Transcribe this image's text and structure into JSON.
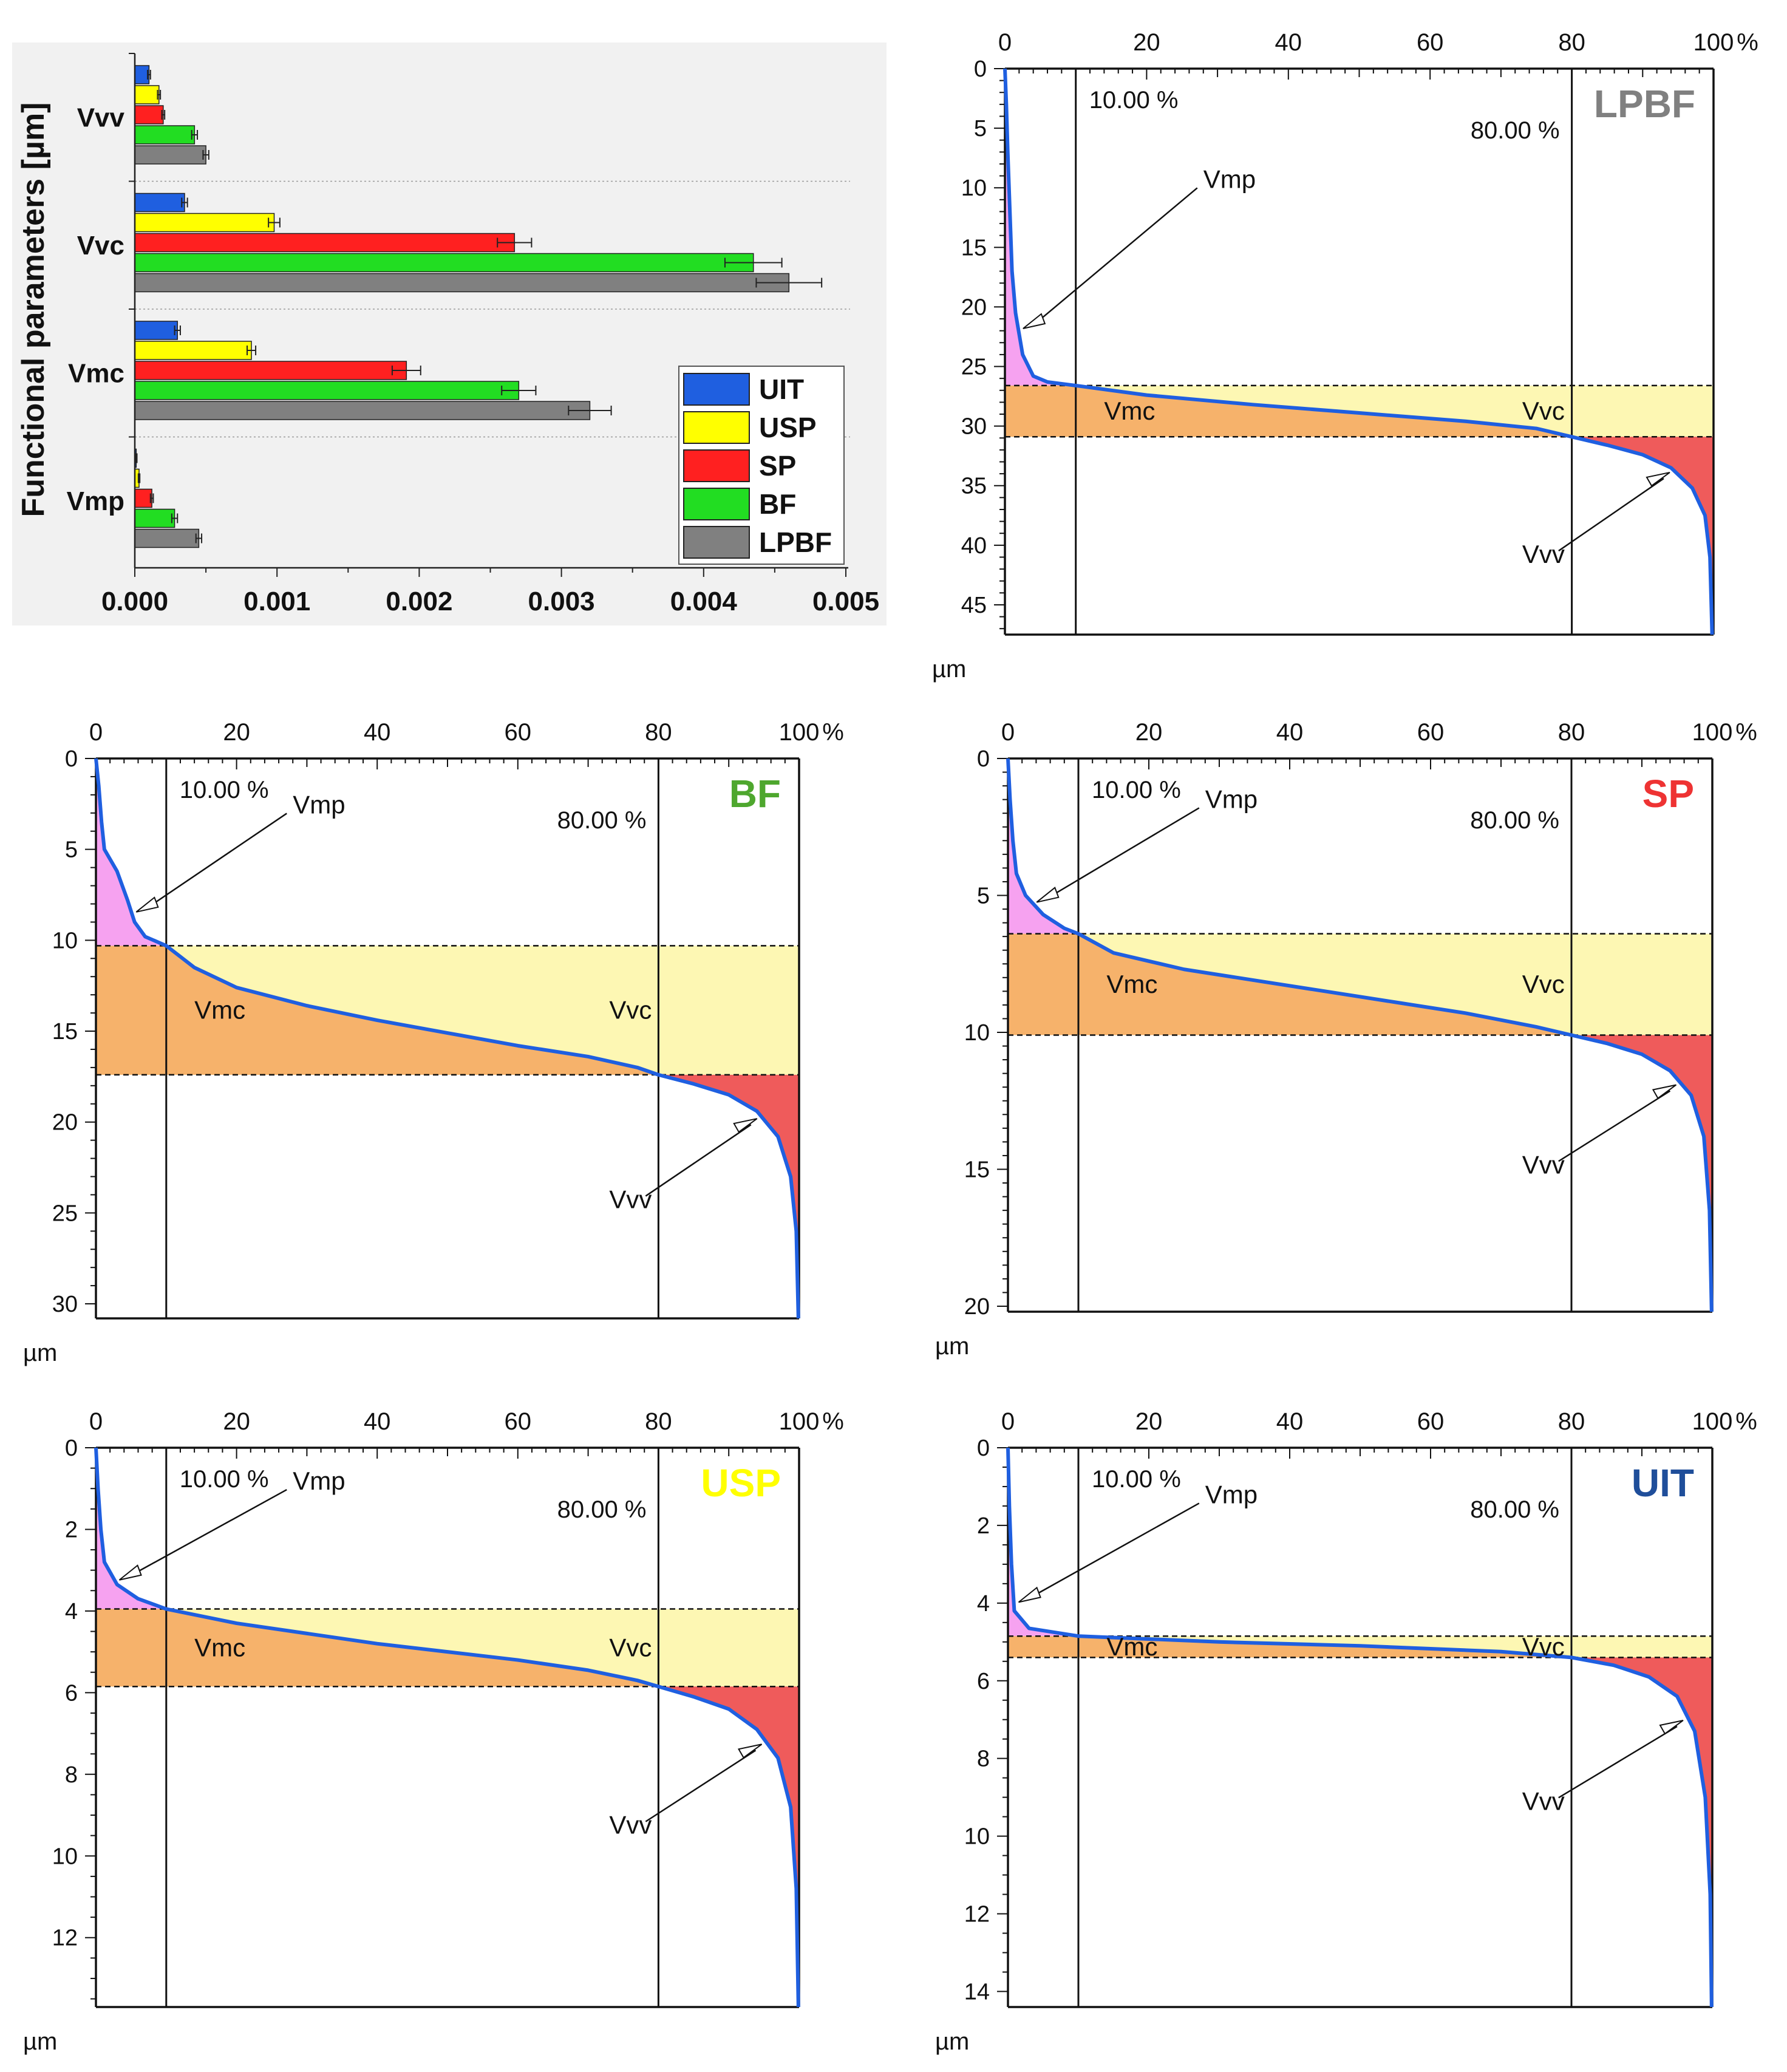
{
  "chart_data": [
    {
      "id": "functional-params",
      "type": "bar",
      "orientation": "horizontal",
      "ylabel": "Functional parameters [µm]",
      "xlabel": "",
      "xlim": [
        0,
        0.005
      ],
      "xticks": [
        "0.000",
        "0.001",
        "0.002",
        "0.003",
        "0.004",
        "0.005"
      ],
      "xtick_values": [
        0,
        0.001,
        0.002,
        0.003,
        0.004,
        0.005
      ],
      "categories": [
        "Vvv",
        "Vvc",
        "Vmc",
        "Vmp"
      ],
      "series": [
        {
          "name": "UIT",
          "color": "#1f5fe0",
          "values": [
            0.0001,
            0.00035,
            0.0003,
            1e-05
          ],
          "errors": [
            1e-05,
            2e-05,
            2e-05,
            5e-06
          ]
        },
        {
          "name": "USP",
          "color": "#ffff00",
          "values": [
            0.00017,
            0.00098,
            0.00082,
            3e-05
          ],
          "errors": [
            1e-05,
            4e-05,
            3e-05,
            5e-06
          ]
        },
        {
          "name": "SP",
          "color": "#ff2020",
          "values": [
            0.0002,
            0.00267,
            0.00191,
            0.00012
          ],
          "errors": [
            1e-05,
            0.00012,
            0.0001,
            1e-05
          ]
        },
        {
          "name": "BF",
          "color": "#22dd22",
          "values": [
            0.00042,
            0.00435,
            0.0027,
            0.00028
          ],
          "errors": [
            2e-05,
            0.0002,
            0.00012,
            2e-05
          ]
        },
        {
          "name": "LPBF",
          "color": "#808080",
          "values": [
            0.0005,
            0.0046,
            0.0032,
            0.00045
          ],
          "errors": [
            2e-05,
            0.00023,
            0.00015,
            2e-05
          ]
        }
      ],
      "legend": [
        "UIT",
        "USP",
        "SP",
        "BF",
        "LPBF"
      ]
    },
    {
      "id": "LPBF",
      "type": "area",
      "title": "LPBF",
      "title_color": "#808080",
      "xunit": "%",
      "yunit": "µm",
      "xticks": [
        0,
        20,
        40,
        60,
        80,
        100
      ],
      "yticks": [
        0,
        5,
        10,
        15,
        20,
        25,
        30,
        35,
        40,
        45
      ],
      "ylim": [
        0,
        47.5
      ],
      "y_minor": 1,
      "thresholds": {
        "mr1": 10,
        "mr2": 80,
        "mr1_label": "10.00 %",
        "mr2_label": "80.00 %"
      },
      "depth_mr1": 26.6,
      "depth_mr2": 30.9,
      "curve": [
        [
          0,
          0
        ],
        [
          0.2,
          3
        ],
        [
          0.4,
          7
        ],
        [
          0.7,
          12
        ],
        [
          1,
          17
        ],
        [
          1.5,
          20.5
        ],
        [
          2.5,
          24
        ],
        [
          4,
          25.8
        ],
        [
          6,
          26.3
        ],
        [
          10,
          26.6
        ],
        [
          20,
          27.4
        ],
        [
          35,
          28.2
        ],
        [
          50,
          28.9
        ],
        [
          65,
          29.6
        ],
        [
          75,
          30.2
        ],
        [
          80,
          30.9
        ],
        [
          85,
          31.6
        ],
        [
          90,
          32.4
        ],
        [
          94,
          33.5
        ],
        [
          97,
          35.2
        ],
        [
          98.8,
          37.5
        ],
        [
          99.5,
          41
        ],
        [
          99.8,
          47.5
        ]
      ],
      "labels": {
        "vmp": "Vmp",
        "vmc": "Vmc",
        "vvc": "Vvc",
        "vvv": "Vvv"
      }
    },
    {
      "id": "BF",
      "type": "area",
      "title": "BF",
      "title_color": "#4ea72e",
      "xunit": "%",
      "yunit": "µm",
      "xticks": [
        0,
        20,
        40,
        60,
        80,
        100
      ],
      "yticks": [
        0,
        5,
        10,
        15,
        20,
        25,
        30
      ],
      "ylim": [
        0,
        30.8
      ],
      "y_minor": 1,
      "thresholds": {
        "mr1": 10,
        "mr2": 80,
        "mr1_label": "10.00 %",
        "mr2_label": "80.00 %"
      },
      "depth_mr1": 10.3,
      "depth_mr2": 17.4,
      "curve": [
        [
          0,
          0
        ],
        [
          0.4,
          1.5
        ],
        [
          0.8,
          3.5
        ],
        [
          1.2,
          5
        ],
        [
          3,
          6.2
        ],
        [
          4.5,
          7.8
        ],
        [
          5.5,
          9
        ],
        [
          7,
          9.8
        ],
        [
          10,
          10.3
        ],
        [
          14,
          11.5
        ],
        [
          20,
          12.6
        ],
        [
          30,
          13.6
        ],
        [
          40,
          14.4
        ],
        [
          50,
          15.1
        ],
        [
          60,
          15.8
        ],
        [
          70,
          16.4
        ],
        [
          77,
          17
        ],
        [
          80,
          17.4
        ],
        [
          85,
          17.9
        ],
        [
          90,
          18.5
        ],
        [
          94,
          19.4
        ],
        [
          97,
          20.8
        ],
        [
          98.8,
          23
        ],
        [
          99.6,
          26
        ],
        [
          99.9,
          30.8
        ]
      ],
      "labels": {
        "vmp": "Vmp",
        "vmc": "Vmc",
        "vvc": "Vvc",
        "vvv": "Vvv"
      }
    },
    {
      "id": "SP",
      "type": "area",
      "title": "SP",
      "title_color": "#ee3333",
      "xunit": "%",
      "yunit": "µm",
      "xticks": [
        0,
        20,
        40,
        60,
        80,
        100
      ],
      "yticks": [
        0,
        5,
        10,
        15,
        20
      ],
      "ylim": [
        0,
        20.2
      ],
      "y_minor": 0.5,
      "thresholds": {
        "mr1": 10,
        "mr2": 80,
        "mr1_label": "10.00 %",
        "mr2_label": "80.00 %"
      },
      "depth_mr1": 6.4,
      "depth_mr2": 10.1,
      "curve": [
        [
          0,
          0
        ],
        [
          0.3,
          1.5
        ],
        [
          0.7,
          3
        ],
        [
          1.2,
          4.2
        ],
        [
          2.5,
          5
        ],
        [
          5,
          5.7
        ],
        [
          8,
          6.2
        ],
        [
          10,
          6.4
        ],
        [
          15,
          7.1
        ],
        [
          25,
          7.7
        ],
        [
          35,
          8.1
        ],
        [
          45,
          8.5
        ],
        [
          55,
          8.9
        ],
        [
          65,
          9.3
        ],
        [
          75,
          9.8
        ],
        [
          80,
          10.1
        ],
        [
          85,
          10.4
        ],
        [
          90,
          10.8
        ],
        [
          94,
          11.4
        ],
        [
          97,
          12.3
        ],
        [
          98.8,
          13.8
        ],
        [
          99.6,
          16.5
        ],
        [
          99.9,
          20.2
        ]
      ],
      "labels": {
        "vmp": "Vmp",
        "vmc": "Vmc",
        "vvc": "Vvc",
        "vvv": "Vvv"
      }
    },
    {
      "id": "USP",
      "type": "area",
      "title": "USP",
      "title_color": "#ffff00",
      "xunit": "%",
      "yunit": "µm",
      "xticks": [
        0,
        20,
        40,
        60,
        80,
        100
      ],
      "yticks": [
        0,
        2,
        4,
        6,
        8,
        10,
        12
      ],
      "ylim": [
        0,
        13.7
      ],
      "y_minor": 0.5,
      "thresholds": {
        "mr1": 10,
        "mr2": 80,
        "mr1_label": "10.00 %",
        "mr2_label": "80.00 %"
      },
      "depth_mr1": 3.95,
      "depth_mr2": 5.85,
      "curve": [
        [
          0,
          0
        ],
        [
          0.3,
          1
        ],
        [
          0.7,
          2
        ],
        [
          1.2,
          2.8
        ],
        [
          3,
          3.35
        ],
        [
          6,
          3.7
        ],
        [
          10,
          3.95
        ],
        [
          20,
          4.3
        ],
        [
          30,
          4.55
        ],
        [
          40,
          4.8
        ],
        [
          50,
          5.0
        ],
        [
          60,
          5.2
        ],
        [
          70,
          5.45
        ],
        [
          77,
          5.7
        ],
        [
          80,
          5.85
        ],
        [
          85,
          6.1
        ],
        [
          90,
          6.4
        ],
        [
          94,
          6.9
        ],
        [
          97,
          7.6
        ],
        [
          98.8,
          8.8
        ],
        [
          99.6,
          10.8
        ],
        [
          99.9,
          13.7
        ]
      ],
      "labels": {
        "vmp": "Vmp",
        "vmc": "Vmc",
        "vvc": "Vvc",
        "vvv": "Vvv"
      }
    },
    {
      "id": "UIT",
      "type": "area",
      "title": "UIT",
      "title_color": "#1f4e9a",
      "xunit": "%",
      "yunit": "µm",
      "xticks": [
        0,
        20,
        40,
        60,
        80,
        100
      ],
      "yticks": [
        0,
        2,
        4,
        6,
        8,
        10,
        12,
        14
      ],
      "ylim": [
        0,
        14.4
      ],
      "y_minor": 0.5,
      "thresholds": {
        "mr1": 10,
        "mr2": 80,
        "mr1_label": "10.00 %",
        "mr2_label": "80.00 %"
      },
      "depth_mr1": 4.85,
      "depth_mr2": 5.4,
      "curve": [
        [
          0,
          0
        ],
        [
          0.2,
          1.5
        ],
        [
          0.5,
          3
        ],
        [
          0.9,
          4.2
        ],
        [
          3,
          4.65
        ],
        [
          10,
          4.85
        ],
        [
          30,
          5.0
        ],
        [
          50,
          5.1
        ],
        [
          70,
          5.25
        ],
        [
          80,
          5.4
        ],
        [
          86,
          5.6
        ],
        [
          91,
          5.9
        ],
        [
          95,
          6.4
        ],
        [
          97.5,
          7.3
        ],
        [
          99,
          9
        ],
        [
          99.7,
          11.5
        ],
        [
          99.9,
          14.4
        ]
      ],
      "labels": {
        "vmp": "Vmp",
        "vmc": "Vmc",
        "vvc": "Vvc",
        "vvv": "Vvv"
      }
    }
  ]
}
